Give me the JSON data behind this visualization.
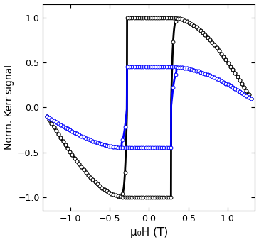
{
  "xlabel": "μ₀H (T)",
  "ylabel": "Norm. Kerr signal",
  "xlim": [
    -1.35,
    1.35
  ],
  "ylim": [
    -1.15,
    1.15
  ],
  "xticks": [
    -1.0,
    -0.5,
    0.0,
    0.5,
    1.0
  ],
  "yticks": [
    -1.0,
    -0.5,
    0.0,
    0.5,
    1.0
  ],
  "black_color": "#000000",
  "blue_color": "#0000ff",
  "figsize": [
    3.64,
    3.41
  ],
  "dpi": 100
}
